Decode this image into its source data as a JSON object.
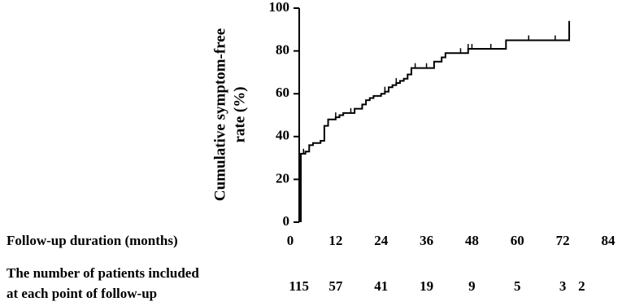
{
  "chart_data": {
    "type": "step",
    "y_label": [
      "Cumulative symptom-free",
      "rate (%)"
    ],
    "x_label": "Follow-up duration (months)",
    "xlim": [
      0,
      84
    ],
    "xticks": [
      0,
      12,
      24,
      36,
      48,
      60,
      72,
      84
    ],
    "ylim": [
      0,
      100
    ],
    "yticks": [
      0,
      20,
      40,
      60,
      80,
      100
    ],
    "color": "#000000",
    "series": [
      {
        "x": [
          2.8,
          2.8,
          4,
          5,
          6,
          8,
          9,
          10,
          12,
          13,
          14,
          17,
          19,
          20,
          21,
          22,
          24,
          25,
          26,
          27,
          28,
          29,
          30,
          31,
          32,
          38,
          40,
          41,
          47,
          57,
          73.7
        ],
        "values": [
          0,
          32,
          33,
          36,
          37,
          38,
          45,
          48,
          49,
          50,
          51,
          53,
          55,
          57,
          58,
          59,
          60,
          61,
          63,
          64,
          65,
          66,
          67,
          69,
          72,
          75,
          77,
          79,
          81,
          85,
          94
        ]
      }
    ],
    "censored": {
      "x": [
        3.5,
        12,
        16,
        25,
        28,
        33,
        36,
        45,
        47,
        48,
        53,
        63,
        70
      ],
      "values": [
        32,
        49,
        51,
        61,
        65,
        72,
        72,
        79,
        81,
        81,
        81,
        85,
        85
      ]
    },
    "number_at_risk": {
      "label": [
        "The number of patients included",
        "at each point of follow-up"
      ],
      "x": [
        2.3,
        12,
        24,
        36,
        48,
        60,
        72,
        77
      ],
      "values": [
        115,
        57,
        41,
        19,
        9,
        5,
        3,
        2
      ]
    }
  }
}
